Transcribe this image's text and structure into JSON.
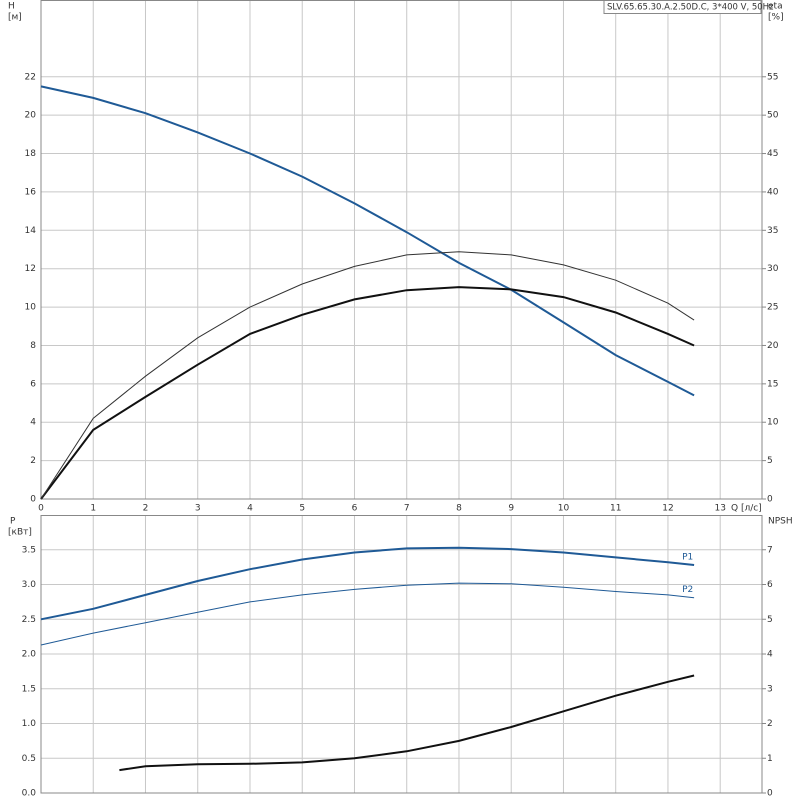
{
  "chart_data": [
    {
      "type": "line",
      "title": "SLV.65.65.30.A.2.50D.C, 3*400 V, 50Hz",
      "y_label": "H",
      "y_unit": "[м]",
      "y2_label": "eta",
      "y2_unit": "[%]",
      "x_label": "Q [л/с]",
      "x": [
        0,
        1,
        2,
        3,
        4,
        5,
        6,
        7,
        8,
        9,
        10,
        11,
        12,
        12.5
      ],
      "xlim": [
        0,
        13.8
      ],
      "xticks": [
        0,
        1,
        2,
        3,
        4,
        5,
        6,
        7,
        8,
        9,
        10,
        11,
        12,
        13
      ],
      "ylim": [
        0,
        26
      ],
      "yticks": [
        0,
        2,
        4,
        6,
        8,
        10,
        12,
        14,
        16,
        18,
        20,
        22
      ],
      "y2lim": [
        0,
        65
      ],
      "y2ticks": [
        0,
        5,
        10,
        15,
        20,
        25,
        30,
        35,
        40,
        45,
        50,
        55
      ],
      "grid": true,
      "series": [
        {
          "color": "#1f5a96",
          "width": 2,
          "values": [
            21.5,
            20.9,
            20.1,
            19.1,
            18.0,
            16.8,
            15.4,
            13.9,
            12.3,
            10.9,
            9.2,
            7.5,
            6.1,
            5.4
          ]
        },
        {
          "color": "#111111",
          "width": 2,
          "axis": "y2",
          "values": [
            0,
            9.0,
            13.3,
            17.5,
            21.5,
            24.0,
            26.0,
            27.2,
            27.6,
            27.3,
            26.3,
            24.3,
            21.5,
            20.0
          ]
        },
        {
          "color": "#333333",
          "width": 1,
          "axis": "y2",
          "values": [
            0,
            10.5,
            16.0,
            21.0,
            25.0,
            28.0,
            30.3,
            31.8,
            32.2,
            31.8,
            30.5,
            28.5,
            25.5,
            23.3
          ]
        }
      ]
    },
    {
      "type": "line",
      "y_label": "P",
      "y_unit": "[кВт]",
      "y2_label": "NPSH",
      "x": [
        0,
        1,
        2,
        3,
        4,
        5,
        6,
        7,
        8,
        9,
        10,
        11,
        12,
        12.5
      ],
      "xlim": [
        0,
        13.8
      ],
      "ylim": [
        0,
        4
      ],
      "yticks": [
        {
          "value": 0,
          "label": "0.0"
        },
        0.5,
        {
          "value": 1,
          "label": "1.0"
        },
        1.5,
        {
          "value": 2,
          "label": "2.0"
        },
        2.5,
        {
          "value": 3,
          "label": "3.0"
        },
        3.5
      ],
      "y2lim": [
        0,
        8
      ],
      "y2ticks": [
        0,
        1,
        2,
        3,
        4,
        5,
        6,
        7
      ],
      "grid": true,
      "series": [
        {
          "name": "P1",
          "color": "#1f5a96",
          "width": 2,
          "values": [
            2.5,
            2.65,
            2.85,
            3.05,
            3.22,
            3.36,
            3.46,
            3.52,
            3.53,
            3.51,
            3.46,
            3.39,
            3.32,
            3.28
          ]
        },
        {
          "name": "P2",
          "color": "#1f5a96",
          "width": 1,
          "values": [
            2.13,
            2.3,
            2.45,
            2.6,
            2.75,
            2.85,
            2.93,
            2.99,
            3.02,
            3.01,
            2.96,
            2.9,
            2.85,
            2.81
          ]
        },
        {
          "color": "#111111",
          "width": 2,
          "axis": "y2",
          "x": [
            1.5,
            2,
            3,
            4,
            5,
            6,
            7,
            8,
            9,
            10,
            11,
            12,
            12.5
          ],
          "values": [
            0.66,
            0.77,
            0.83,
            0.84,
            0.88,
            1.0,
            1.2,
            1.5,
            1.9,
            2.35,
            2.8,
            3.2,
            3.38
          ]
        }
      ]
    }
  ]
}
